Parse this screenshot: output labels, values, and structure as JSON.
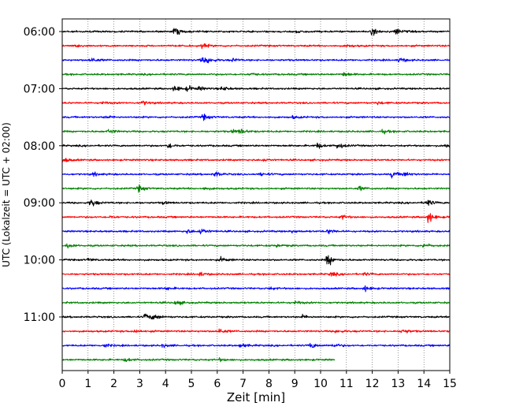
{
  "chart_data": {
    "type": "line",
    "title": "",
    "xlabel": "Zeit  [min]",
    "ylabel": "UTC (Lokalzeit = UTC + 02:00)",
    "xlim": [
      0,
      15
    ],
    "x_ticks": [
      "0",
      "1",
      "2",
      "3",
      "4",
      "5",
      "6",
      "7",
      "8",
      "9",
      "10",
      "11",
      "12",
      "13",
      "14",
      "15"
    ],
    "y_ticks": [
      {
        "label": "06:00",
        "row": 0
      },
      {
        "label": "07:00",
        "row": 4
      },
      {
        "label": "08:00",
        "row": 8
      },
      {
        "label": "09:00",
        "row": 12
      },
      {
        "label": "10:00",
        "row": 16
      },
      {
        "label": "11:00",
        "row": 20
      }
    ],
    "grid": "vertical dotted",
    "color_cycle": [
      "#000000",
      "#ff0000",
      "#0000ff",
      "#008000"
    ],
    "rows": [
      {
        "start": "06:00",
        "color": "#000000",
        "end_min": 15,
        "events": [
          {
            "t": 4.35,
            "a": 1.6
          },
          {
            "t": 12.0,
            "a": 1.4
          },
          {
            "t": 12.9,
            "a": 1.3
          },
          {
            "t": 9.1,
            "a": 0.7
          }
        ]
      },
      {
        "start": "06:15",
        "color": "#ff0000",
        "end_min": 15,
        "events": [
          {
            "t": 5.4,
            "a": 0.9
          },
          {
            "t": 0.5,
            "a": 0.6
          },
          {
            "t": 11.0,
            "a": 0.5
          }
        ]
      },
      {
        "start": "06:30",
        "color": "#0000ff",
        "end_min": 15,
        "events": [
          {
            "t": 1.1,
            "a": 1.1
          },
          {
            "t": 5.4,
            "a": 1.0
          },
          {
            "t": 5.6,
            "a": 1.0
          },
          {
            "t": 13.05,
            "a": 1.0
          },
          {
            "t": 6.6,
            "a": 0.6
          }
        ]
      },
      {
        "start": "06:45",
        "color": "#008000",
        "end_min": 15,
        "events": [
          {
            "t": 10.9,
            "a": 0.9
          },
          {
            "t": 7.3,
            "a": 0.5
          }
        ]
      },
      {
        "start": "07:00",
        "color": "#000000",
        "end_min": 15,
        "events": [
          {
            "t": 4.35,
            "a": 1.2
          },
          {
            "t": 4.85,
            "a": 1.0
          },
          {
            "t": 6.2,
            "a": 0.8
          },
          {
            "t": 5.3,
            "a": 0.6
          }
        ]
      },
      {
        "start": "07:15",
        "color": "#ff0000",
        "end_min": 15,
        "events": [
          {
            "t": 3.1,
            "a": 0.8
          },
          {
            "t": 1.5,
            "a": 0.5
          },
          {
            "t": 12.2,
            "a": 0.5
          }
        ]
      },
      {
        "start": "07:30",
        "color": "#0000ff",
        "end_min": 15,
        "events": [
          {
            "t": 5.45,
            "a": 1.1
          },
          {
            "t": 8.9,
            "a": 0.5
          },
          {
            "t": 1.7,
            "a": 0.5
          }
        ]
      },
      {
        "start": "07:45",
        "color": "#008000",
        "end_min": 15,
        "events": [
          {
            "t": 1.8,
            "a": 0.9
          },
          {
            "t": 6.9,
            "a": 0.9
          },
          {
            "t": 12.4,
            "a": 0.6
          },
          {
            "t": 6.6,
            "a": 0.7
          }
        ]
      },
      {
        "start": "08:00",
        "color": "#000000",
        "end_min": 15,
        "events": [
          {
            "t": 4.1,
            "a": 1.1
          },
          {
            "t": 9.85,
            "a": 1.1
          },
          {
            "t": 10.65,
            "a": 1.3
          },
          {
            "t": 14.8,
            "a": 0.8
          }
        ]
      },
      {
        "start": "08:15",
        "color": "#ff0000",
        "end_min": 15,
        "events": [
          {
            "t": 0.05,
            "a": 0.9
          },
          {
            "t": 7.8,
            "a": 0.5
          }
        ]
      },
      {
        "start": "08:30",
        "color": "#0000ff",
        "end_min": 15,
        "events": [
          {
            "t": 5.9,
            "a": 1.1
          },
          {
            "t": 12.75,
            "a": 1.2
          },
          {
            "t": 13.2,
            "a": 0.9
          },
          {
            "t": 7.7,
            "a": 0.7
          },
          {
            "t": 1.2,
            "a": 0.6
          }
        ]
      },
      {
        "start": "08:45",
        "color": "#008000",
        "end_min": 15,
        "events": [
          {
            "t": 2.95,
            "a": 1.2
          },
          {
            "t": 11.5,
            "a": 0.8
          },
          {
            "t": 5.5,
            "a": 0.5
          }
        ]
      },
      {
        "start": "09:00",
        "color": "#000000",
        "end_min": 15,
        "events": [
          {
            "t": 1.1,
            "a": 1.6
          },
          {
            "t": 14.1,
            "a": 1.4
          },
          {
            "t": 3.9,
            "a": 0.5
          }
        ]
      },
      {
        "start": "09:15",
        "color": "#ff0000",
        "end_min": 15,
        "events": [
          {
            "t": 14.15,
            "a": 2.2
          },
          {
            "t": 10.8,
            "a": 0.8
          },
          {
            "t": 1.8,
            "a": 0.5
          }
        ]
      },
      {
        "start": "09:30",
        "color": "#0000ff",
        "end_min": 15,
        "events": [
          {
            "t": 5.35,
            "a": 1.3
          },
          {
            "t": 4.8,
            "a": 0.9
          },
          {
            "t": 10.3,
            "a": 0.9
          },
          {
            "t": 8.9,
            "a": 0.6
          }
        ]
      },
      {
        "start": "09:45",
        "color": "#008000",
        "end_min": 15,
        "events": [
          {
            "t": 0.2,
            "a": 0.9
          },
          {
            "t": 14.0,
            "a": 0.9
          },
          {
            "t": 8.3,
            "a": 0.5
          }
        ]
      },
      {
        "start": "10:00",
        "color": "#000000",
        "end_min": 15,
        "events": [
          {
            "t": 10.25,
            "a": 2.4
          },
          {
            "t": 6.15,
            "a": 0.8
          },
          {
            "t": 1.0,
            "a": 0.5
          }
        ]
      },
      {
        "start": "10:15",
        "color": "#ff0000",
        "end_min": 15,
        "events": [
          {
            "t": 5.3,
            "a": 0.8
          },
          {
            "t": 10.4,
            "a": 0.8
          },
          {
            "t": 11.7,
            "a": 0.5
          }
        ]
      },
      {
        "start": "10:30",
        "color": "#0000ff",
        "end_min": 15,
        "events": [
          {
            "t": 11.7,
            "a": 1.0
          },
          {
            "t": 4.0,
            "a": 0.6
          },
          {
            "t": 8.0,
            "a": 0.5
          }
        ]
      },
      {
        "start": "10:45",
        "color": "#008000",
        "end_min": 15,
        "events": [
          {
            "t": 4.4,
            "a": 0.9
          },
          {
            "t": 9.0,
            "a": 0.6
          }
        ]
      },
      {
        "start": "11:00",
        "color": "#000000",
        "end_min": 15,
        "events": [
          {
            "t": 3.2,
            "a": 1.4
          },
          {
            "t": 3.55,
            "a": 1.0
          },
          {
            "t": 9.3,
            "a": 0.6
          }
        ]
      },
      {
        "start": "11:15",
        "color": "#ff0000",
        "end_min": 15,
        "events": [
          {
            "t": 6.05,
            "a": 1.2
          },
          {
            "t": 13.15,
            "a": 1.1
          },
          {
            "t": 2.8,
            "a": 0.7
          },
          {
            "t": 10.6,
            "a": 0.6
          }
        ]
      },
      {
        "start": "11:30",
        "color": "#0000ff",
        "end_min": 15,
        "events": [
          {
            "t": 9.6,
            "a": 1.2
          },
          {
            "t": 10.5,
            "a": 0.8
          },
          {
            "t": 1.6,
            "a": 0.8
          },
          {
            "t": 6.9,
            "a": 0.9
          },
          {
            "t": 3.9,
            "a": 0.6
          }
        ]
      },
      {
        "start": "11:45",
        "color": "#008000",
        "end_min": 10.55,
        "events": [
          {
            "t": 2.45,
            "a": 0.7
          },
          {
            "t": 6.1,
            "a": 0.5
          }
        ]
      }
    ]
  }
}
